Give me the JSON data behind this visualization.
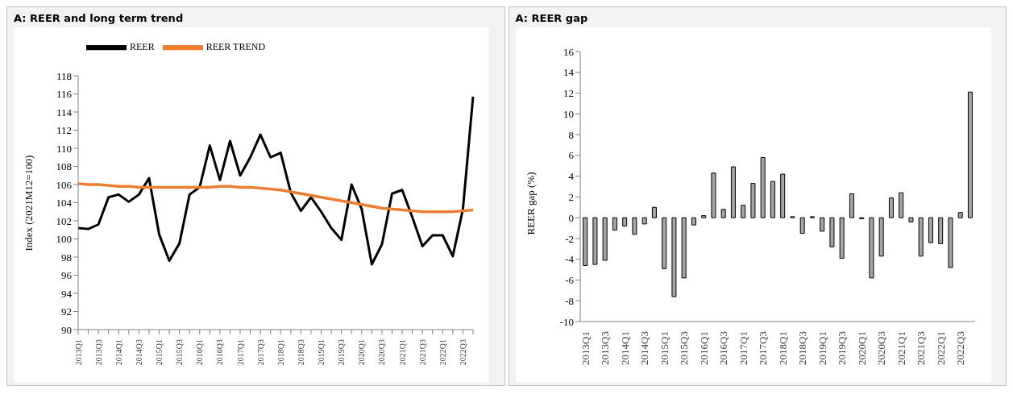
{
  "chart_data": [
    {
      "type": "line",
      "title": "A: REER and long term trend",
      "ylabel": "Index (2021M12=100)",
      "categories": [
        "2013Q1",
        null,
        "2013Q3",
        null,
        "2014Q1",
        null,
        "2014Q3",
        null,
        "2015Q1",
        null,
        "2015Q3",
        null,
        "2016Q1",
        null,
        "2016Q3",
        null,
        "2017Q1",
        null,
        "2017Q3",
        null,
        "2018Q1",
        null,
        "2018Q3",
        null,
        "2019Q1",
        null,
        "2019Q3",
        null,
        "2020Q1",
        null,
        "2020Q3",
        null,
        "2021Q1",
        null,
        "2021Q3",
        null,
        "2022Q1",
        null,
        "2022Q3",
        null
      ],
      "series": [
        {
          "name": "REER",
          "color": "#000000",
          "values": [
            101.2,
            101.1,
            101.6,
            104.6,
            104.9,
            104.1,
            104.9,
            106.7,
            100.5,
            97.6,
            99.5,
            104.9,
            105.7,
            110.3,
            106.5,
            110.8,
            107.0,
            109.0,
            111.5,
            109.0,
            109.5,
            105.1,
            103.1,
            104.6,
            103.0,
            101.2,
            99.9,
            106.0,
            103.3,
            97.2,
            99.4,
            105.0,
            105.4,
            102.4,
            99.2,
            100.4,
            100.4,
            98.1,
            103.3,
            115.7
          ]
        },
        {
          "name": "REER TREND",
          "color": "#ed7d31",
          "values": [
            106.1,
            106.0,
            106.0,
            105.9,
            105.8,
            105.8,
            105.7,
            105.7,
            105.7,
            105.7,
            105.7,
            105.7,
            105.7,
            105.7,
            105.8,
            105.8,
            105.7,
            105.7,
            105.6,
            105.5,
            105.4,
            105.2,
            105.0,
            104.8,
            104.6,
            104.4,
            104.2,
            104.0,
            103.8,
            103.6,
            103.4,
            103.3,
            103.2,
            103.1,
            103.0,
            103.0,
            103.0,
            103.0,
            103.1,
            103.2
          ]
        }
      ],
      "ylim": [
        90,
        118
      ],
      "yticks": [
        90,
        92,
        94,
        96,
        98,
        100,
        102,
        104,
        106,
        108,
        110,
        112,
        114,
        116,
        118
      ],
      "legend": "top left",
      "marker": "none",
      "line_style": "solid"
    },
    {
      "type": "bar",
      "title": "A: REER gap",
      "ylabel": "REER gap (%)",
      "categories": [
        "2013Q1",
        null,
        "2013Q3",
        null,
        "2014Q1",
        null,
        "2014Q3",
        null,
        "2015Q1",
        null,
        "2015Q3",
        null,
        "2016Q1",
        null,
        "2016Q3",
        null,
        "2017Q1",
        null,
        "2017Q3",
        null,
        "2018Q1",
        null,
        "2018Q3",
        null,
        "2019Q1",
        null,
        "2019Q3",
        null,
        "2020Q1",
        null,
        "2020Q3",
        null,
        "2021Q1",
        null,
        "2021Q3",
        null,
        "2022Q1",
        null,
        "2022Q3",
        null
      ],
      "series": [
        {
          "color": "#a6a6a6",
          "values": [
            -4.6,
            -4.5,
            -4.1,
            -1.2,
            -0.8,
            -1.6,
            -0.6,
            1.0,
            -4.9,
            -7.6,
            -5.8,
            -0.7,
            0.2,
            4.3,
            0.8,
            4.9,
            1.2,
            3.3,
            5.8,
            3.5,
            4.2,
            0.1,
            -1.5,
            0.1,
            -1.3,
            -2.8,
            -3.9,
            2.3,
            -0.1,
            -5.8,
            -3.7,
            1.9,
            2.4,
            -0.4,
            -3.7,
            -2.4,
            -2.5,
            -4.8,
            0.5,
            12.1
          ]
        }
      ],
      "ylim": [
        -10,
        16
      ],
      "yticks": [
        -10,
        -8,
        -6,
        -4,
        -2,
        0,
        2,
        4,
        6,
        8,
        10,
        12,
        14,
        16
      ]
    }
  ]
}
